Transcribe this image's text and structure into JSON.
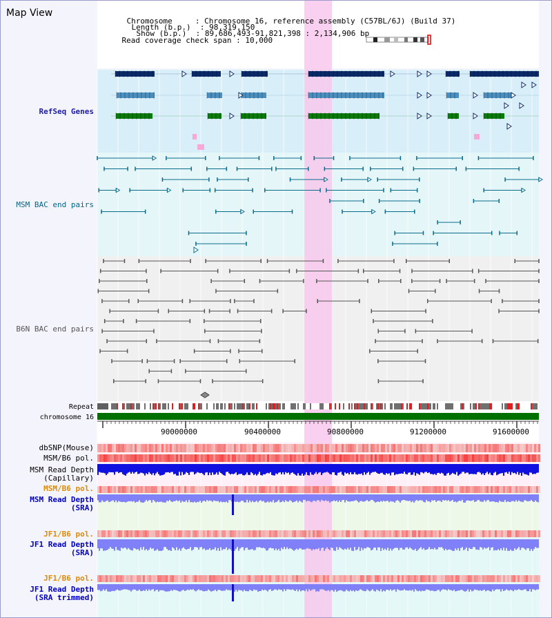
{
  "title": "Map View",
  "info": {
    "chromosome_key": "Chromosome",
    "chromosome_val": "Chromosome 16, reference assembly (C57BL/6J) (Build 37)",
    "length_key": "Length (b.p.)",
    "length_val": "98,319,150",
    "show_key": "Show (b.p.)",
    "show_val": "89,686,493-91,821,398 : 2,134,906 bp",
    "span_key": "Read coverage check span",
    "span_val": "10,000"
  },
  "tracks": {
    "refseq": "RefSeq Genes",
    "msm_bac": "MSM BAC end pairs",
    "b6n_bac": "B6N BAC end pairs",
    "repeat": "Repeat",
    "chromosome": "chromosome 16",
    "dbsnp": "dbSNP(Mouse)",
    "msm_pol": "MSM/B6 pol.",
    "msm_depth_cap_1": "MSM Read Depth",
    "msm_depth_cap_2": "(Capillary)",
    "msm_pol2": "MSM/B6 pol.",
    "msm_depth_sra_1": "MSM Read Depth",
    "msm_depth_sra_2": "(SRA)",
    "jf1_pol": "JF1/B6 pol.",
    "jf1_depth_1": "JF1 Read Depth",
    "jf1_depth_2": "(SRA)",
    "jf1_pol2": "JF1/B6 pol.",
    "jf1_trim_1": "JF1 Read Depth",
    "jf1_trim_2": "(SRA trimmed)"
  },
  "axis": {
    "ticks": [
      "90000000",
      "90400000",
      "90800000",
      "91200000",
      "91600000"
    ]
  },
  "colors": {
    "gene_dark": "#0a2a6a",
    "gene_mid": "#4a8fbf",
    "gene_green": "#0a7a0a",
    "refseq_bg": "#d8eef8",
    "msm_bg": "#e4f6f8",
    "msm_line": "#0a6a8a",
    "b6n_line": "#555555",
    "highlight": "#f8c8ec",
    "chrom_green": "#007000",
    "depth_blue": "#1010e0",
    "depth_lightblue": "#8080f8",
    "pol_red": "#f04040"
  }
}
